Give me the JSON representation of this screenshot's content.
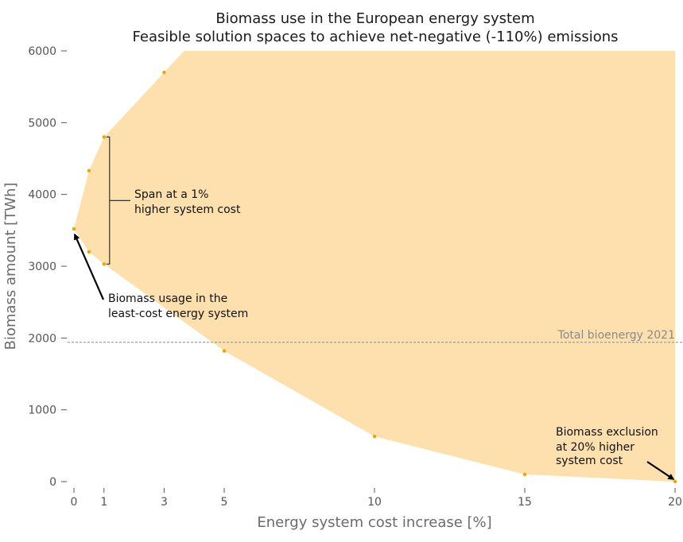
{
  "chart_data": {
    "type": "area",
    "title": "Biomass use in the European energy system",
    "subtitle": "Feasible solution spaces to achieve net-negative (-110%) emissions",
    "xlabel": "Energy system cost increase [%]",
    "ylabel": "Biomass amount [TWh]",
    "xlim": [
      0,
      20
    ],
    "ylim": [
      0,
      6000
    ],
    "x_ticks": [
      0,
      1,
      3,
      5,
      10,
      15,
      20
    ],
    "y_ticks": [
      0,
      1000,
      2000,
      3000,
      4000,
      5000,
      6000
    ],
    "grid": false,
    "fill_color": "#fde0ae",
    "point_color": "#f0a400",
    "series": [
      {
        "x": [
          0,
          0.5,
          1,
          3
        ],
        "values": [
          3520,
          4330,
          4800,
          5700
        ]
      },
      {
        "x": [
          0,
          0.5,
          1,
          5,
          10,
          15,
          20
        ],
        "values": [
          3520,
          3200,
          3030,
          1820,
          630,
          100,
          0
        ]
      }
    ],
    "reference_line": {
      "label": "Total bioenergy 2021",
      "value": 1940
    },
    "annotations": [
      {
        "text_lines": [
          "Span at a 1%",
          "higher system cost"
        ],
        "x": 1,
        "y_range": [
          3030,
          4800
        ]
      },
      {
        "text_lines": [
          "Biomass usage in the",
          "least-cost energy system"
        ],
        "x": 0,
        "y": 3520
      },
      {
        "text_lines": [
          "Biomass exclusion",
          "at 20% higher",
          "system cost"
        ],
        "x": 20,
        "y": 0
      }
    ]
  }
}
